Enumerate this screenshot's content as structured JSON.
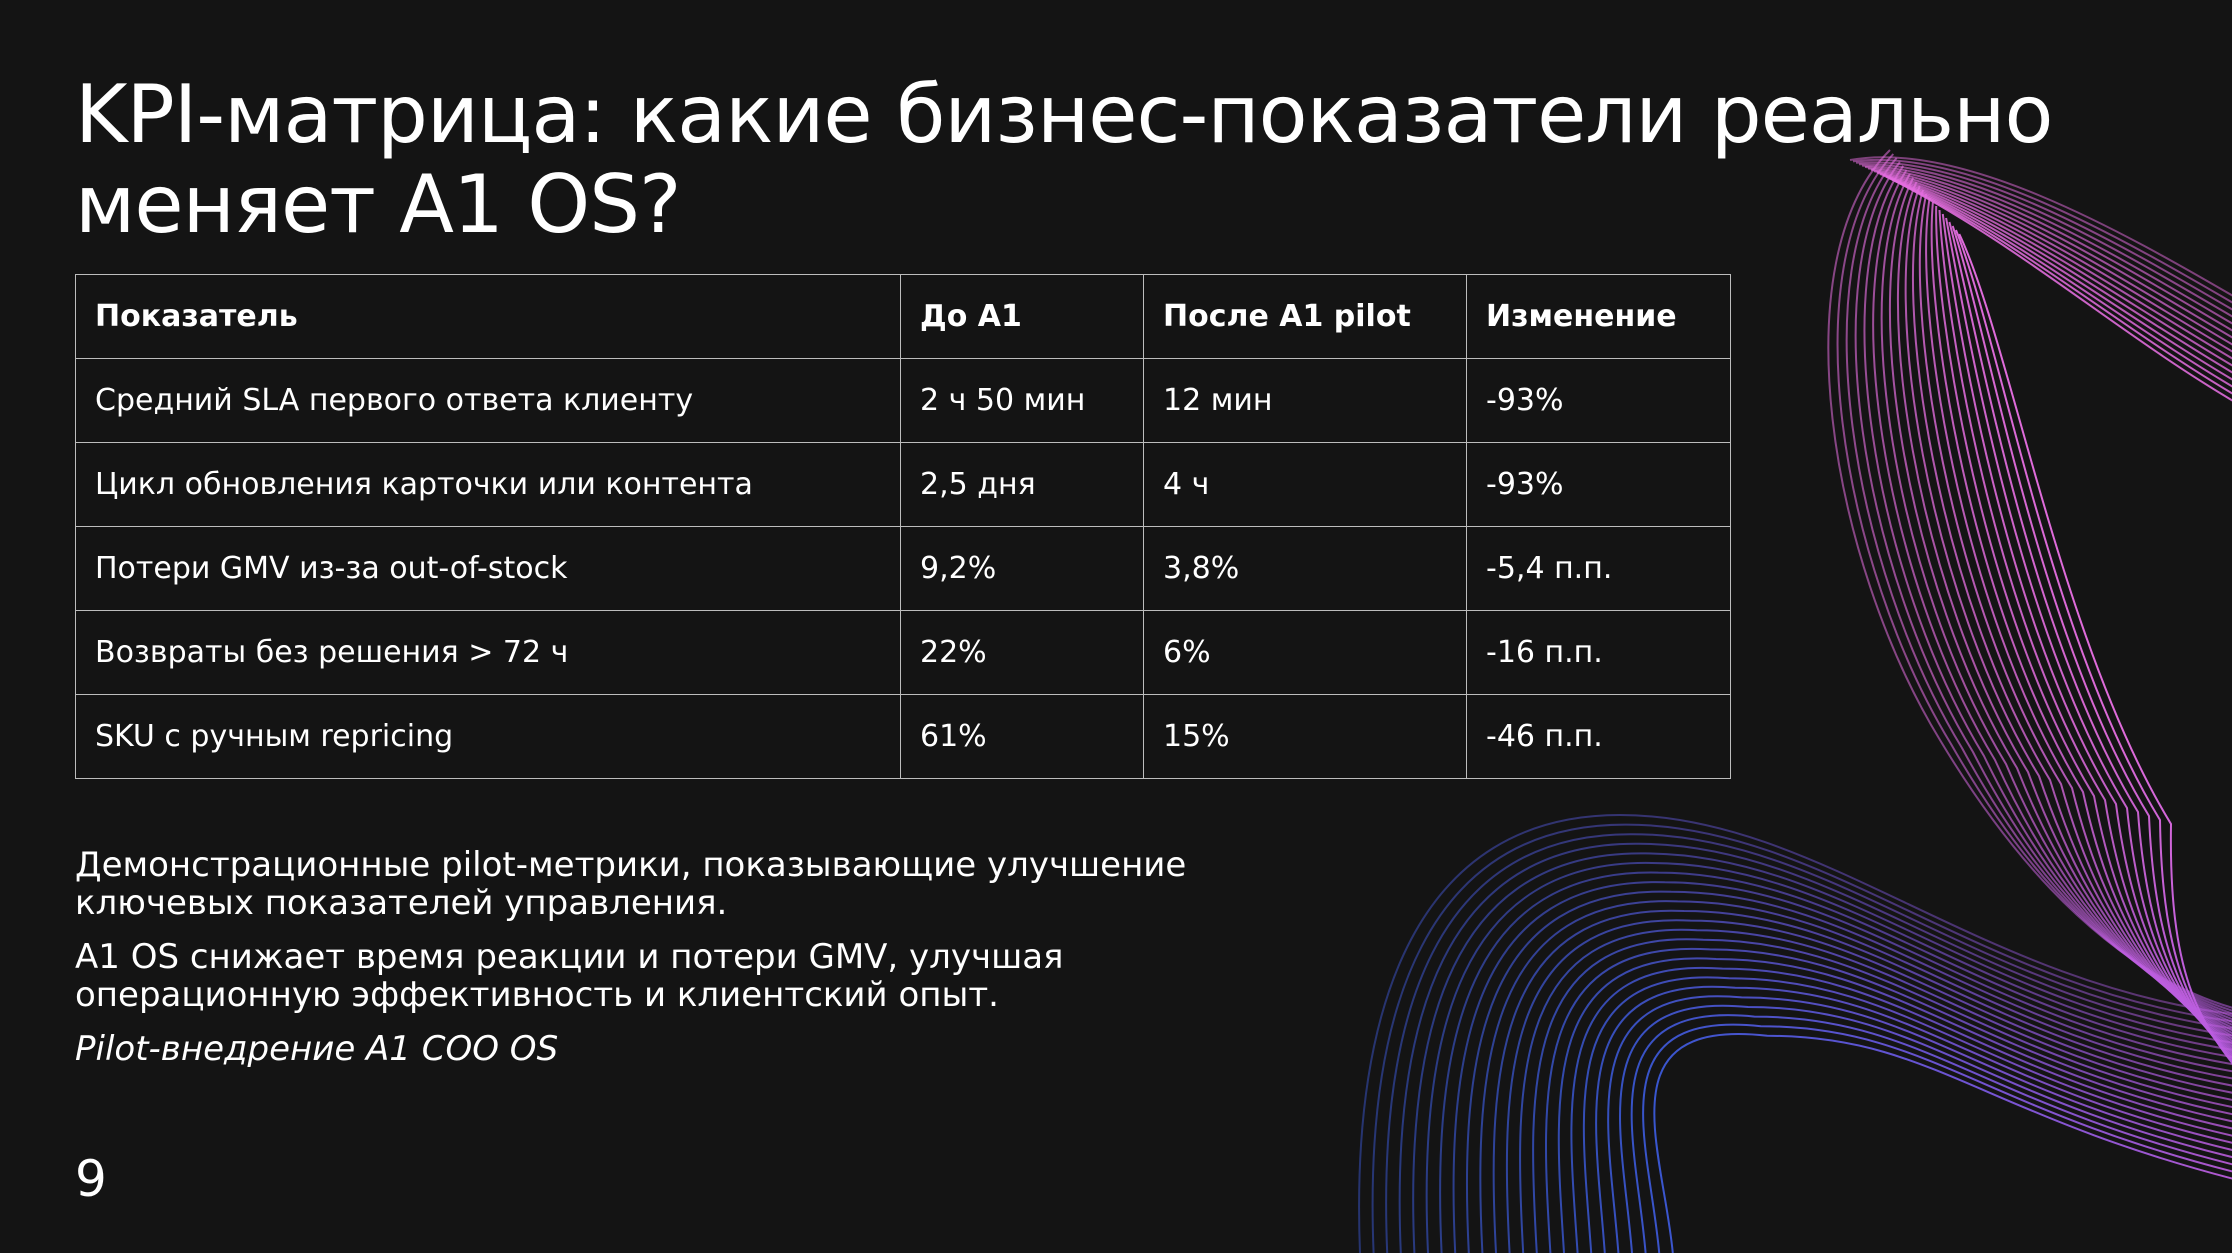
{
  "slide": {
    "title_lines": [
      "KPI-матрица: какие бизнес-показатели реально",
      "меняет A1 OS?"
    ],
    "page_number": "9",
    "colors": {
      "background": "#141414",
      "text": "#ffffff",
      "table_border": "#bdbdbd",
      "wave_pink": "#e56ee0",
      "wave_blue": "#3c5ce0"
    }
  },
  "table": {
    "headers": [
      "Показатель",
      "До A1",
      "После A1 pilot",
      "Изменение"
    ],
    "rows": [
      [
        "Средний SLA первого ответа клиенту",
        "2 ч 50 мин",
        "12 мин",
        "-93%"
      ],
      [
        "Цикл обновления карточки или контента",
        "2,5 дня",
        "4 ч",
        "-93%"
      ],
      [
        "Потери GMV из-за out-of-stock",
        "9,2%",
        "3,8%",
        "-5,4 п.п."
      ],
      [
        "Возвраты без решения > 72 ч",
        "22%",
        "6%",
        "-16 п.п."
      ],
      [
        "SKU с ручным repricing",
        "61%",
        "15%",
        "-46 п.п."
      ]
    ]
  },
  "description": {
    "paragraphs": [
      [
        "Демонстрационные pilot-метрики, показывающие улучшение",
        "ключевых показателей управления."
      ],
      [
        "A1 OS снижает время реакции и потери GMV, улучшая",
        "операционную эффективность и клиентский опыт."
      ]
    ],
    "caption": "Pilot-внедрение A1 COO OS"
  }
}
